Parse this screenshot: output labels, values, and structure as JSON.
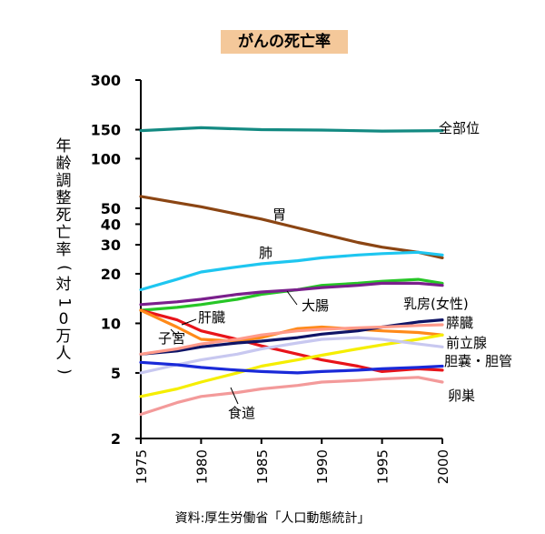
{
  "title": "がんの死亡率",
  "source": "資料:厚生労働省「人口動態統計」",
  "chart_data": {
    "type": "line",
    "title": "がんの死亡率",
    "ylabel": "年齢調整死亡率(対10万人)",
    "xlabel": "",
    "y_scale": "log",
    "ylim": [
      2,
      300
    ],
    "xlim": [
      1975,
      2000
    ],
    "y_ticks": [
      300,
      150,
      100,
      50,
      40,
      30,
      20,
      10,
      5,
      2
    ],
    "x_ticks": [
      1975,
      1980,
      1985,
      1990,
      1995,
      2000
    ],
    "grid": false,
    "legend": "inline labels",
    "series": [
      {
        "name": "全部位",
        "color": "#138a82",
        "x": [
          1975,
          1980,
          1985,
          1990,
          1995,
          2000
        ],
        "values": [
          148,
          154,
          150,
          149,
          147,
          148
        ]
      },
      {
        "name": "胃",
        "color": "#8b4513",
        "x": [
          1975,
          1978,
          1980,
          1983,
          1985,
          1988,
          1990,
          1993,
          1995,
          1998,
          2000
        ],
        "values": [
          59,
          54,
          51,
          46,
          43,
          38,
          35,
          31,
          29,
          27,
          25
        ]
      },
      {
        "name": "肺",
        "color": "#1ec6f0",
        "x": [
          1975,
          1978,
          1980,
          1983,
          1985,
          1988,
          1990,
          1993,
          1995,
          1998,
          2000
        ],
        "values": [
          16,
          18.5,
          20.5,
          22,
          23,
          24,
          25,
          26,
          26.5,
          27,
          26
        ]
      },
      {
        "name": "大腸",
        "color": "#26c626",
        "x": [
          1975,
          1978,
          1980,
          1983,
          1985,
          1988,
          1990,
          1993,
          1995,
          1998,
          2000
        ],
        "values": [
          12,
          12.5,
          13,
          14,
          15,
          16,
          17,
          17.5,
          18,
          18.5,
          17.5
        ]
      },
      {
        "name": "大腸",
        "color": "#7a1f8c",
        "x": [
          1975,
          1978,
          1980,
          1983,
          1985,
          1988,
          1990,
          1993,
          1995,
          1998,
          2000
        ],
        "values": [
          13,
          13.5,
          14,
          15,
          15.5,
          16,
          16.5,
          17,
          17.5,
          17.5,
          17
        ]
      },
      {
        "name": "肝臓",
        "color": "#e8141a",
        "x": [
          1975,
          1978,
          1980,
          1983,
          1985,
          1988,
          1990,
          1993,
          1995,
          1998,
          2000
        ],
        "values": [
          12,
          10.5,
          9,
          8,
          7.3,
          6.5,
          6,
          5.5,
          5.1,
          5.3,
          5.2
        ]
      },
      {
        "name": "子宮",
        "color": "#ff8a1a",
        "x": [
          1975,
          1978,
          1980,
          1983,
          1985,
          1988,
          1990,
          1993,
          1995,
          1998,
          2000
        ],
        "values": [
          12,
          9.5,
          8,
          7.8,
          8.2,
          9.3,
          9.5,
          9.2,
          9,
          8.8,
          8.5
        ]
      },
      {
        "name": "乳房(女性)",
        "color": "#0f1466",
        "x": [
          1975,
          1978,
          1980,
          1983,
          1985,
          1988,
          1990,
          1993,
          1995,
          1998,
          2000
        ],
        "values": [
          6.5,
          6.8,
          7.2,
          7.6,
          7.8,
          8.2,
          8.6,
          9,
          9.5,
          10.2,
          10.5
        ]
      },
      {
        "name": "膵臓",
        "color": "#ff9a8a",
        "x": [
          1975,
          1978,
          1980,
          1983,
          1985,
          1988,
          1990,
          1993,
          1995,
          1998,
          2000
        ],
        "values": [
          6.5,
          7,
          7.5,
          8,
          8.5,
          9,
          9.2,
          9.4,
          9.5,
          9.7,
          9.8
        ]
      },
      {
        "name": "前立腺",
        "color": "#f5ee00",
        "x": [
          1975,
          1978,
          1980,
          1983,
          1985,
          1988,
          1990,
          1993,
          1995,
          1998,
          2000
        ],
        "values": [
          3.6,
          4,
          4.4,
          5,
          5.5,
          6,
          6.4,
          7,
          7.4,
          8,
          8.5
        ]
      },
      {
        "name": "胆嚢・胆管",
        "color": "#c8c8f0",
        "x": [
          1975,
          1978,
          1980,
          1983,
          1985,
          1988,
          1990,
          1993,
          1995,
          1998,
          2000
        ],
        "values": [
          5,
          5.6,
          6,
          6.5,
          7,
          7.6,
          8,
          8.2,
          8,
          7.5,
          7.2
        ]
      },
      {
        "name": "食道",
        "color": "#1a2ad8",
        "x": [
          1975,
          1978,
          1980,
          1983,
          1985,
          1988,
          1990,
          1993,
          1995,
          1998,
          2000
        ],
        "values": [
          5.8,
          5.6,
          5.4,
          5.2,
          5.1,
          5,
          5.1,
          5.2,
          5.3,
          5.4,
          5.5
        ]
      },
      {
        "name": "卵巣",
        "color": "#f39a9a",
        "x": [
          1975,
          1978,
          1980,
          1983,
          1985,
          1988,
          1990,
          1993,
          1995,
          1998,
          2000
        ],
        "values": [
          2.8,
          3.3,
          3.6,
          3.8,
          4,
          4.2,
          4.4,
          4.5,
          4.6,
          4.7,
          4.4
        ]
      }
    ]
  }
}
